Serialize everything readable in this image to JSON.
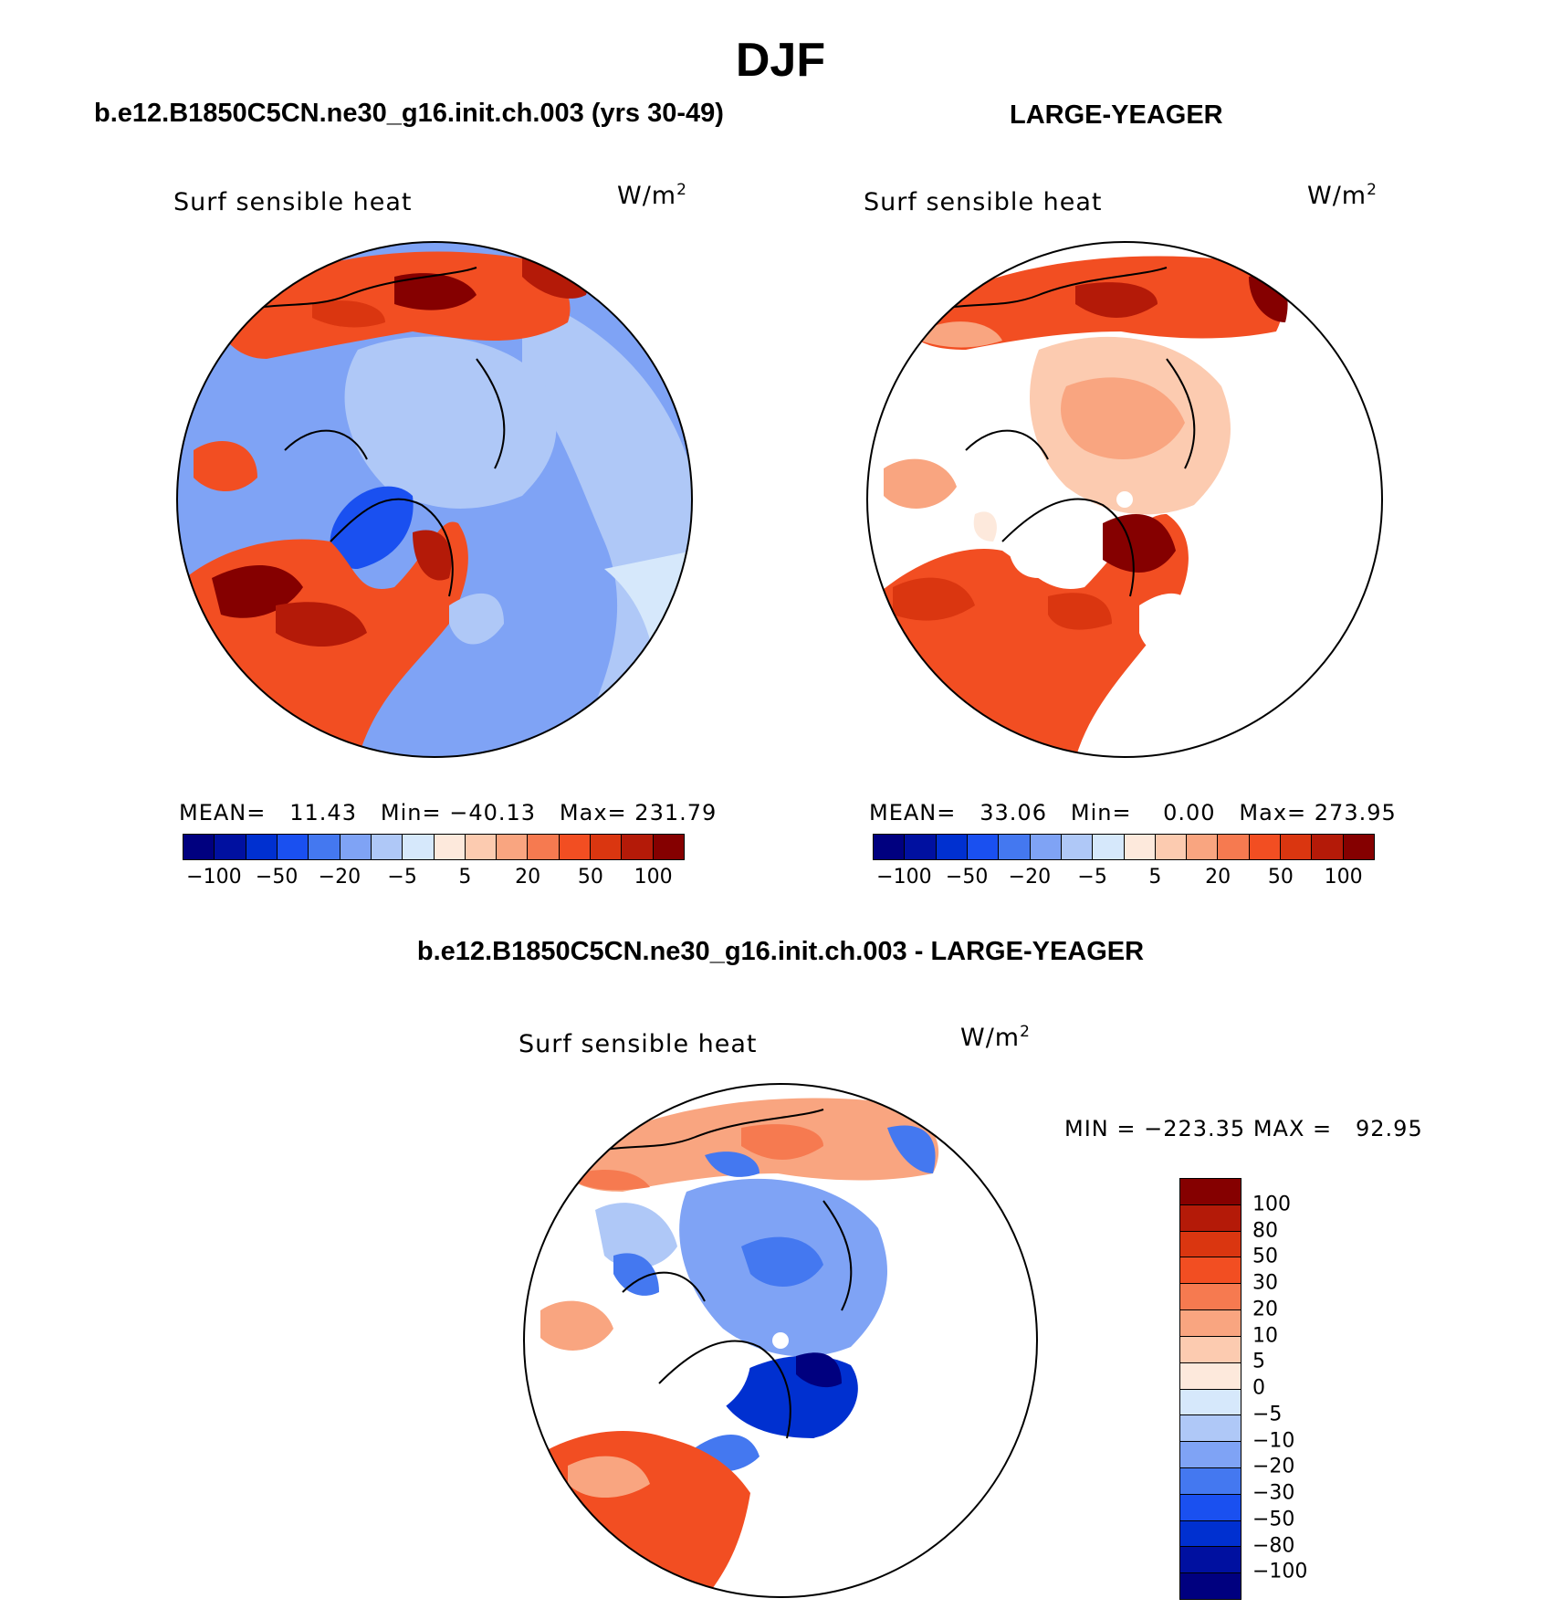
{
  "title": "DJF",
  "panels": {
    "model": {
      "case_title": "b.e12.B1850C5CN.ne30_g16.init.ch.003 (yrs 30-49)",
      "variable": "Surf sensible heat",
      "units": "W/m",
      "units_exp": "2",
      "mean_label": "MEAN=",
      "mean": "11.43",
      "min_label": "Min=",
      "min": "−40.13",
      "max_label": "Max=",
      "max": "231.79"
    },
    "obs": {
      "case_title": "LARGE-YEAGER",
      "variable": "Surf sensible heat",
      "units": "W/m",
      "units_exp": "2",
      "mean_label": "MEAN=",
      "mean": "33.06",
      "min_label": "Min=",
      "min": "0.00",
      "max_label": "Max=",
      "max": "273.95"
    },
    "diff": {
      "case_title": "b.e12.B1850C5CN.ne30_g16.init.ch.003 - LARGE-YEAGER",
      "variable": "Surf sensible heat",
      "units": "W/m",
      "units_exp": "2",
      "minmax": "MIN = −223.35 MAX =   92.95"
    }
  },
  "colorbar_top": {
    "colors": [
      "#00007f",
      "#0010a0",
      "#0030d0",
      "#1a50f0",
      "#4478f0",
      "#7fa3f5",
      "#afc8f7",
      "#d6e8fb",
      "#fde9dc",
      "#fccbb0",
      "#f9a580",
      "#f67a50",
      "#f24e22",
      "#da3610",
      "#b41a08",
      "#850000"
    ],
    "labels": [
      "−100",
      "−50",
      "−20",
      "−5",
      "5",
      "20",
      "50",
      "100"
    ]
  },
  "colorbar_diff": {
    "colors": [
      "#850000",
      "#b41a08",
      "#da3610",
      "#f24e22",
      "#f67a50",
      "#f9a580",
      "#fccbb0",
      "#fde9dc",
      "#d6e8fb",
      "#afc8f7",
      "#7fa3f5",
      "#4478f0",
      "#1a50f0",
      "#0030d0",
      "#0010a0",
      "#00007f"
    ],
    "labels": [
      "100",
      "80",
      "50",
      "30",
      "20",
      "10",
      "5",
      "0",
      "−5",
      "−10",
      "−20",
      "−30",
      "−50",
      "−80",
      "−100"
    ]
  },
  "map_colors": {
    "land_missing": "#ffffff",
    "strong_red": "#850000",
    "red": "#da3610",
    "orange": "#f24e22",
    "light_orange": "#f9a580",
    "peach": "#fccbb0",
    "light_blue": "#afc8f7",
    "mid_blue": "#7fa3f5",
    "blue": "#4478f0",
    "deep_blue": "#0030d0",
    "pale_blue": "#d6e8fb"
  }
}
